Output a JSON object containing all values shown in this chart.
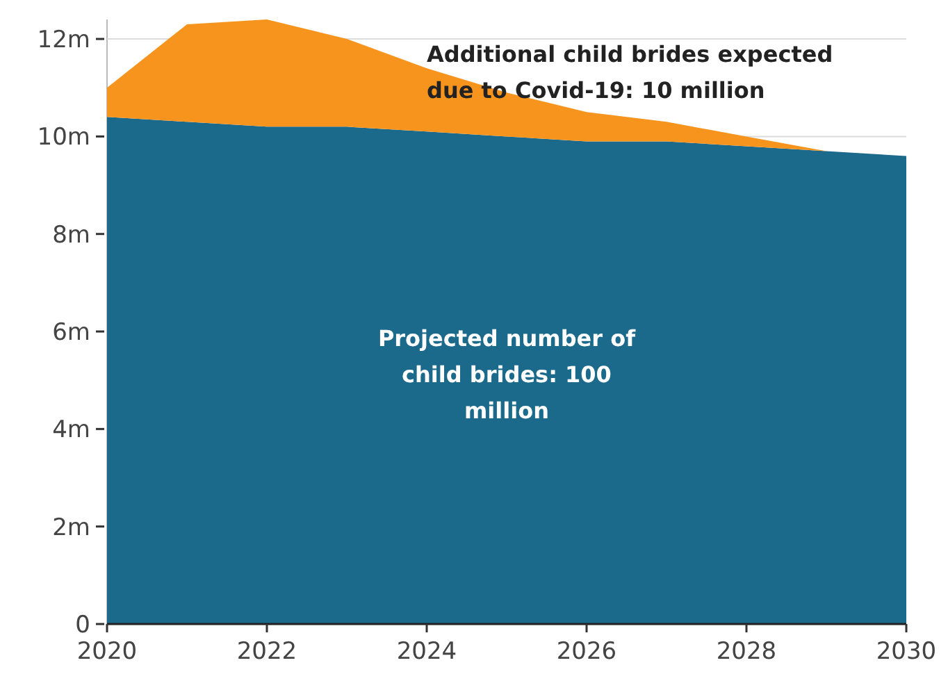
{
  "chart_data": {
    "type": "area",
    "stacked": true,
    "x": [
      2020,
      2021,
      2022,
      2023,
      2024,
      2025,
      2026,
      2027,
      2028,
      2029,
      2030
    ],
    "series": [
      {
        "color": "#1b6a8c",
        "values": [
          10.4,
          10.3,
          10.2,
          10.2,
          10.1,
          10.0,
          9.9,
          9.9,
          9.8,
          9.7,
          9.6
        ]
      },
      {
        "color": "#f7941d",
        "values": [
          0.6,
          2.0,
          2.2,
          1.8,
          1.3,
          0.9,
          0.6,
          0.4,
          0.2,
          0,
          0
        ]
      }
    ],
    "xlim": [
      2020,
      2030
    ],
    "xticks": [
      2020,
      2022,
      2024,
      2026,
      2028,
      2030
    ],
    "ylim": [
      0,
      12.4
    ],
    "yticks": [
      0,
      {
        "value": 2,
        "label": "2m"
      },
      {
        "value": 4,
        "label": "4m"
      },
      {
        "value": 6,
        "label": "6m"
      },
      {
        "value": 8,
        "label": "8m"
      },
      {
        "value": 10,
        "label": "10m"
      },
      {
        "value": 12,
        "label": "12m"
      }
    ],
    "grid": "y",
    "annotations": [
      "Additional child brides expected due to Covid-19: 10 million",
      "Projected number of child brides: 100 million"
    ]
  }
}
